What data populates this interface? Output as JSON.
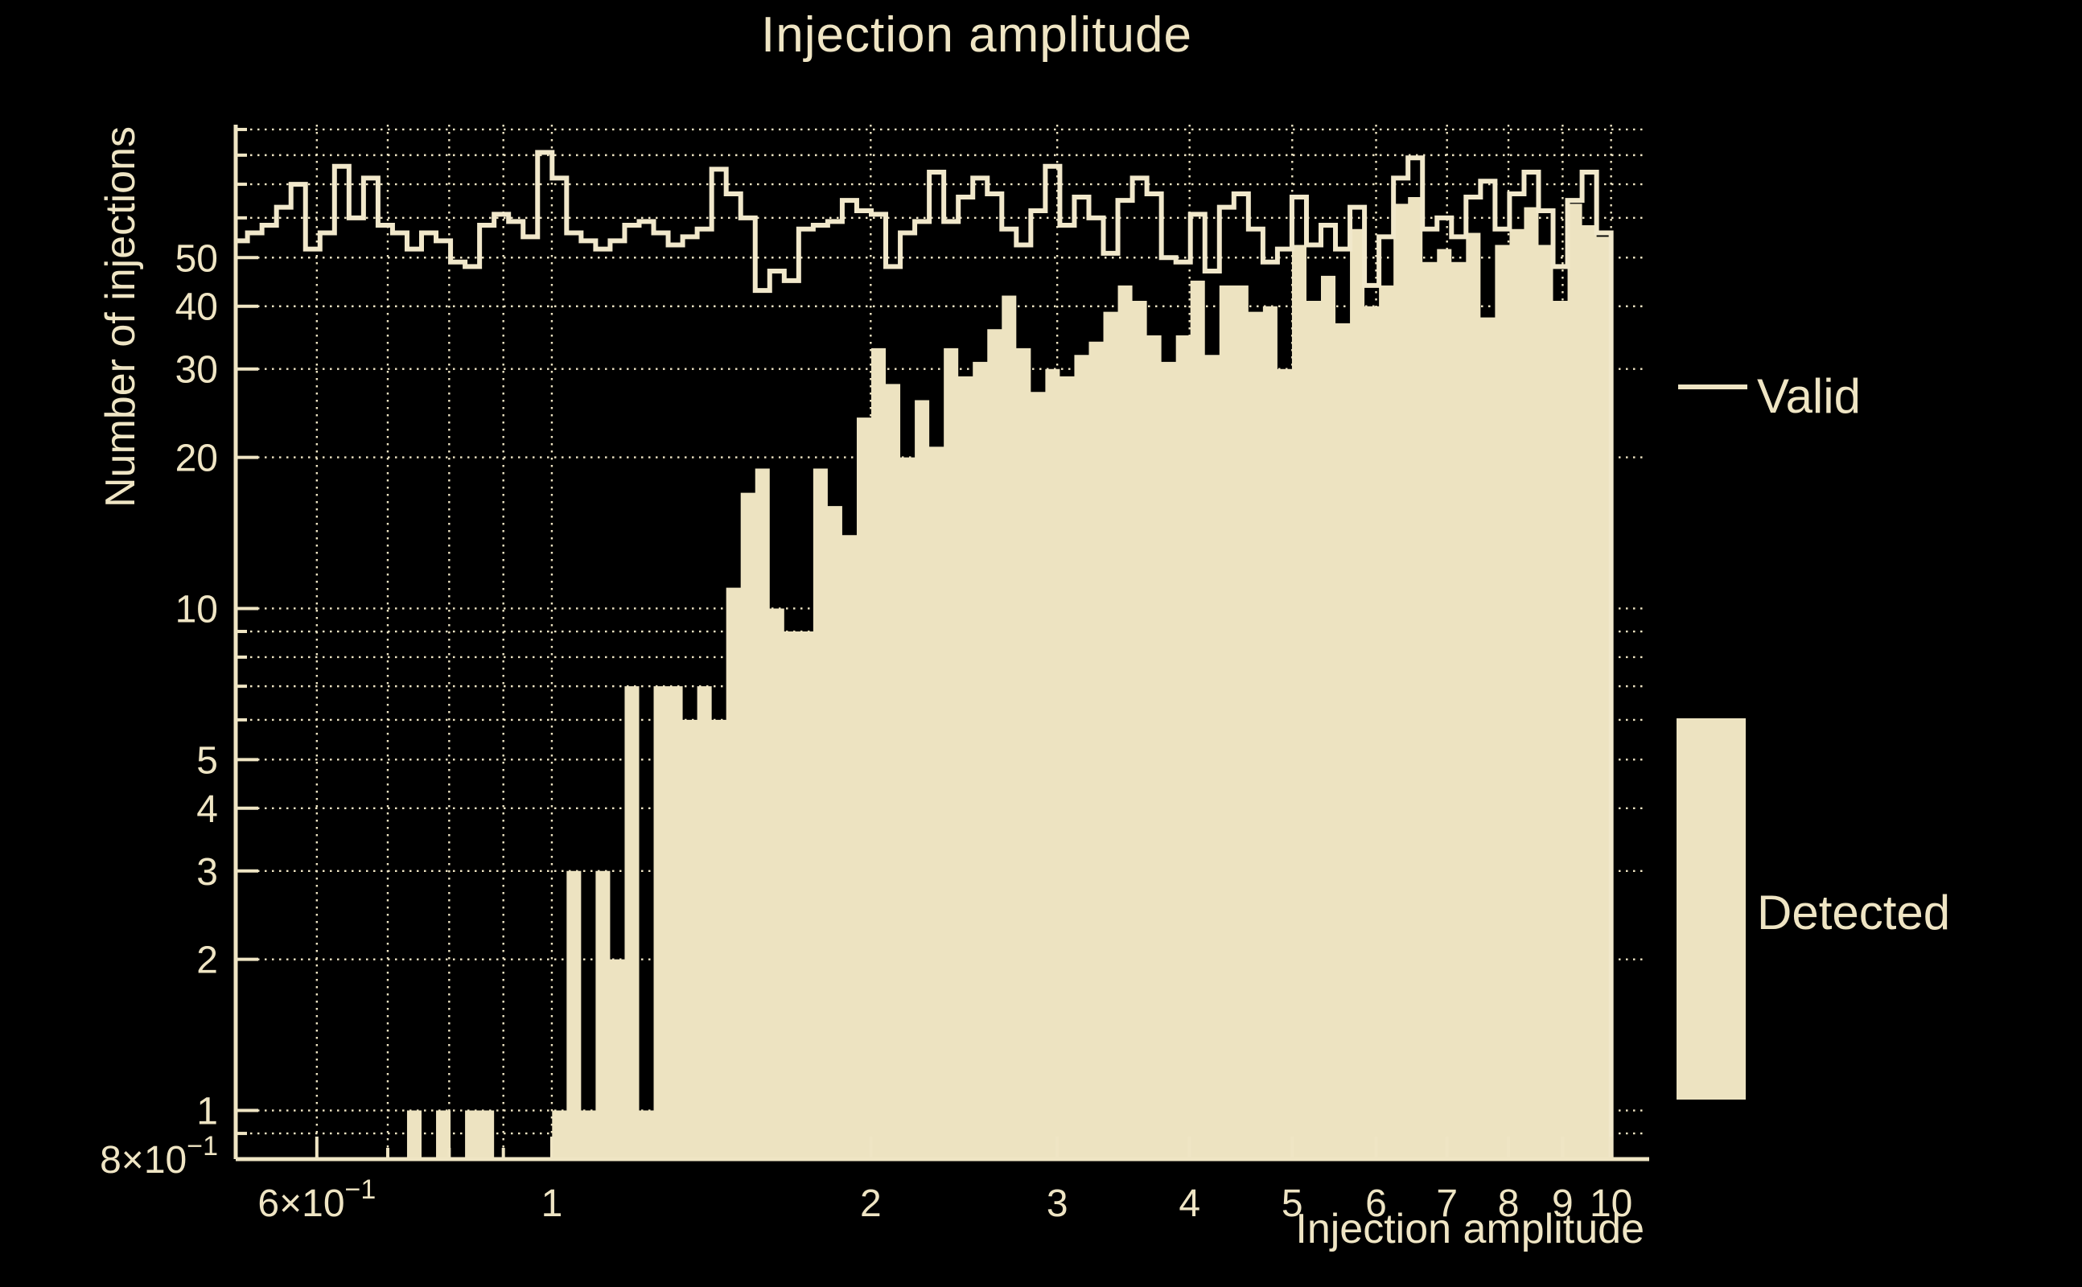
{
  "title": "Injection amplitude",
  "colors": {
    "background": "#000000",
    "foreground": "#EFE5C4",
    "fill": "#EDE3C1",
    "line": "#F1E8CB"
  },
  "legend": {
    "items": [
      {
        "label": "Valid",
        "marker": "line"
      },
      {
        "label": "Detected",
        "marker": "filled-box"
      }
    ]
  },
  "chart_data": {
    "type": "bar",
    "subtype": "log-log step histogram",
    "title": "Injection amplitude",
    "xlabel": "Injection amplitude",
    "ylabel": "Number of injections",
    "xscale": "log",
    "yscale": "log",
    "xlim": [
      0.503,
      10.75
    ],
    "ylim": [
      0.8,
      92
    ],
    "grid": true,
    "grid_style": "dotted",
    "legend_position": "right",
    "bins": {
      "start": 0.5,
      "end": 10,
      "count": 95,
      "spacing": "log"
    },
    "x_grid": [
      0.6,
      0.7,
      0.8,
      0.9,
      1,
      2,
      3,
      4,
      5,
      6,
      7,
      8,
      9,
      10
    ],
    "y_grid": [
      0.9,
      1,
      2,
      3,
      4,
      5,
      6,
      7,
      8,
      9,
      10,
      20,
      30,
      40,
      50,
      60,
      70,
      80,
      90
    ],
    "x_ticks": [
      {
        "v": 0.6,
        "text": "6×10",
        "sup": "−1"
      },
      {
        "v": 1,
        "text": "1"
      },
      {
        "v": 2,
        "text": "2"
      },
      {
        "v": 3,
        "text": "3"
      },
      {
        "v": 4,
        "text": "4"
      },
      {
        "v": 5,
        "text": "5"
      },
      {
        "v": 6,
        "text": "6"
      },
      {
        "v": 7,
        "text": "7"
      },
      {
        "v": 8,
        "text": "8"
      },
      {
        "v": 9,
        "text": "9"
      },
      {
        "v": 10,
        "text": "10"
      }
    ],
    "y_ticks": [
      {
        "v": 0.8,
        "text": "8×10",
        "sup": "−1"
      },
      {
        "v": 1,
        "text": "1"
      },
      {
        "v": 2,
        "text": "2"
      },
      {
        "v": 3,
        "text": "3"
      },
      {
        "v": 4,
        "text": "4"
      },
      {
        "v": 5,
        "text": "5"
      },
      {
        "v": 10,
        "text": "10"
      },
      {
        "v": 20,
        "text": "20"
      },
      {
        "v": 30,
        "text": "30"
      },
      {
        "v": 40,
        "text": "40"
      },
      {
        "v": 50,
        "text": "50"
      }
    ],
    "series": [
      {
        "name": "Valid",
        "style": "step-outline",
        "values": [
          54,
          56,
          58,
          63,
          70,
          52,
          56,
          76,
          60,
          72,
          58,
          56,
          52,
          56,
          54,
          49,
          48,
          58,
          61,
          59,
          55,
          81,
          72,
          56,
          54,
          52,
          54,
          58,
          59,
          56,
          53,
          55,
          57,
          75,
          67,
          60,
          43,
          47,
          45,
          57,
          58,
          59,
          65,
          62,
          61,
          48,
          56,
          59,
          74,
          59,
          66,
          72,
          67,
          57,
          53,
          62,
          76,
          58,
          66,
          60,
          51,
          65,
          72,
          67,
          50,
          49,
          61,
          47,
          63,
          67,
          57,
          49,
          52,
          66,
          53,
          58,
          52,
          63,
          44,
          55,
          72,
          79,
          57,
          60,
          55,
          66,
          71,
          57,
          67,
          74,
          62,
          48,
          65,
          74,
          56
        ]
      },
      {
        "name": "Detected",
        "style": "filled",
        "values": [
          0,
          0,
          0,
          0,
          0,
          0,
          0,
          0,
          0,
          0,
          0,
          0,
          1,
          0,
          1,
          0,
          1,
          1,
          0,
          0,
          0,
          0,
          1,
          3,
          1,
          3,
          2,
          7,
          1,
          7,
          7,
          6,
          7,
          6,
          11,
          17,
          19,
          10,
          9,
          9,
          19,
          16,
          14,
          24,
          33,
          28,
          20,
          26,
          21,
          33,
          29,
          31,
          36,
          42,
          33,
          27,
          30,
          29,
          32,
          34,
          39,
          44,
          41,
          35,
          31,
          35,
          45,
          32,
          44,
          44,
          39,
          40,
          30,
          53,
          41,
          46,
          37,
          57,
          40,
          44,
          64,
          66,
          49,
          52,
          49,
          56,
          38,
          53,
          57,
          63,
          53,
          41,
          64,
          58,
          55
        ]
      }
    ]
  }
}
